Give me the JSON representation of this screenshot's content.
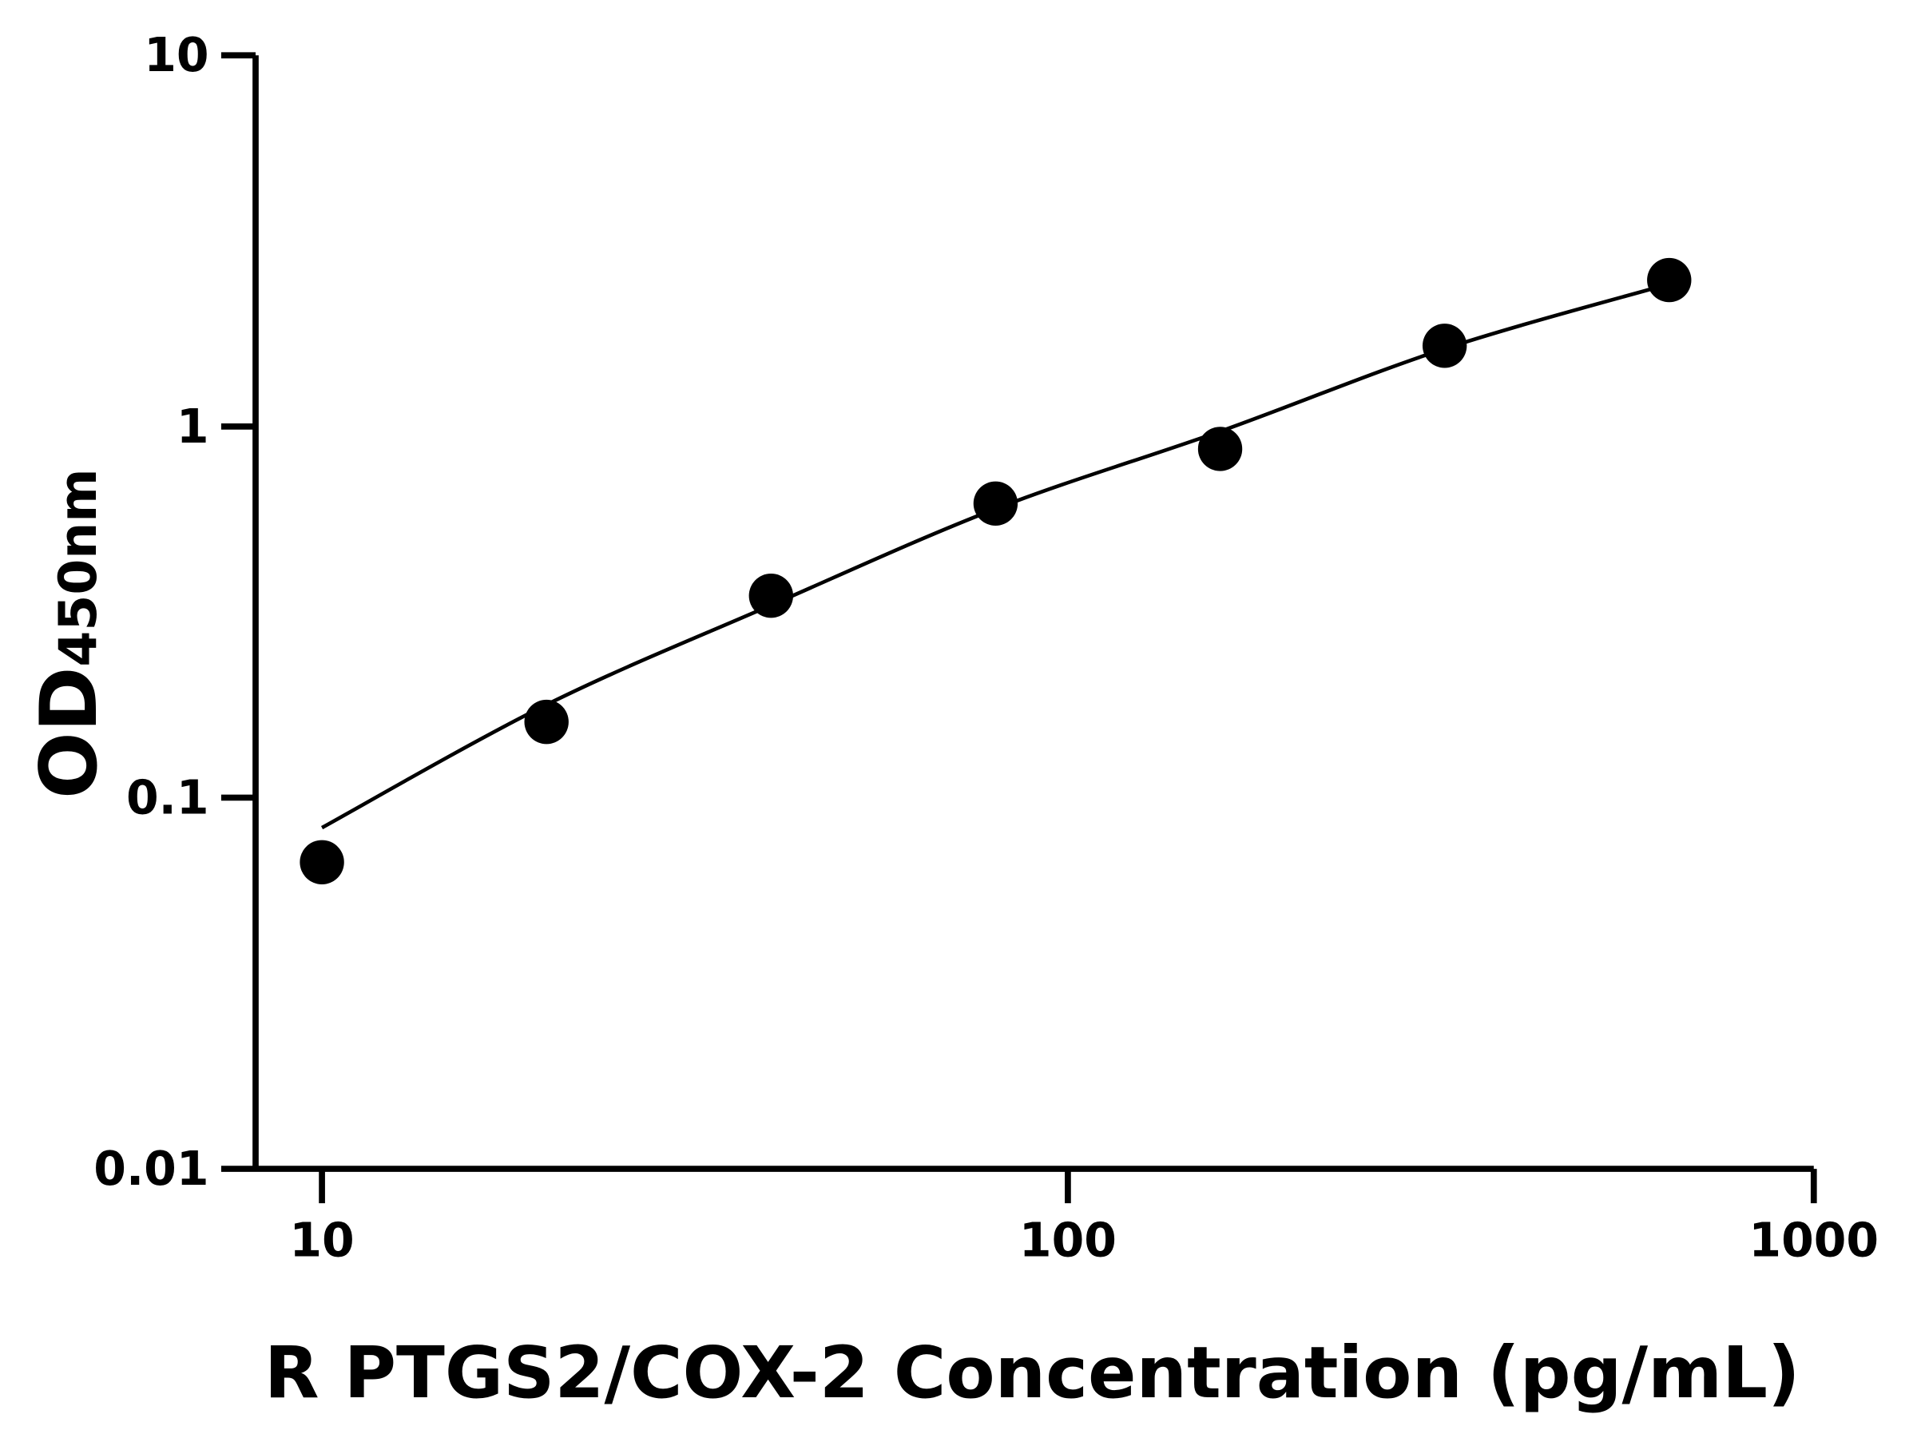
{
  "chart_data": {
    "type": "scatter",
    "xlabel": "R PTGS2/COX-2 Concentration (pg/mL)",
    "ylabel": "OD",
    "ylabel_subscript": "450nm",
    "xscale": "log",
    "yscale": "log",
    "xlim": [
      10,
      1000
    ],
    "ylim": [
      0.01,
      10
    ],
    "xticks": [
      {
        "value": 10,
        "label": "10"
      },
      {
        "value": 100,
        "label": "100"
      },
      {
        "value": 1000,
        "label": "1000"
      }
    ],
    "yticks": [
      {
        "value": 0.01,
        "label": "0.01"
      },
      {
        "value": 0.1,
        "label": "0.1"
      },
      {
        "value": 1,
        "label": "1"
      },
      {
        "value": 10,
        "label": "10"
      }
    ],
    "grid": false,
    "points": [
      {
        "x": 10,
        "y": 0.067
      },
      {
        "x": 20,
        "y": 0.16
      },
      {
        "x": 40,
        "y": 0.35
      },
      {
        "x": 80,
        "y": 0.62
      },
      {
        "x": 160,
        "y": 0.87
      },
      {
        "x": 320,
        "y": 1.65
      },
      {
        "x": 640,
        "y": 2.48
      }
    ],
    "fit_curve": [
      {
        "x": 10,
        "y": 0.083
      },
      {
        "x": 20,
        "y": 0.178
      },
      {
        "x": 40,
        "y": 0.33
      },
      {
        "x": 80,
        "y": 0.6
      },
      {
        "x": 160,
        "y": 0.97
      },
      {
        "x": 320,
        "y": 1.62
      },
      {
        "x": 640,
        "y": 2.42
      }
    ],
    "colors": {
      "points": "#000000",
      "curve": "#000000",
      "axes": "#000000"
    }
  }
}
